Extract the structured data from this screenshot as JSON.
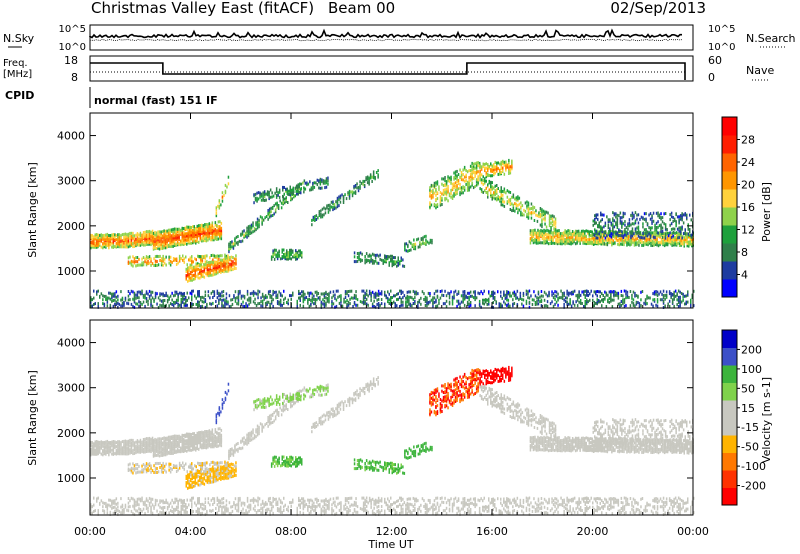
{
  "header": {
    "title": "Christmas Valley East (fitACF)",
    "beam": "Beam 00",
    "date": "02/Sep/2013"
  },
  "summary_panels": {
    "nsky_label": "N.Sky",
    "nsky_ticks": [
      "10^5",
      "10^0"
    ],
    "nsearch_label": "N.Search",
    "nsearch_ticks": [
      "10^5",
      "10^0"
    ],
    "freq_label_line1": "Freq.",
    "freq_label_line2": "[MHz]",
    "freq_ticks": [
      "18",
      "8"
    ],
    "nave_label": "Nave",
    "nave_ticks": [
      "60",
      "0"
    ],
    "cpid_label": "CPID",
    "cpid_text": "normal (fast) 151 IF"
  },
  "colors": {
    "power_scale": [
      "#0000ff",
      "#1e3ca0",
      "#2f7f4a",
      "#1ea03c",
      "#8fd24b",
      "#ffd23c",
      "#ff9600",
      "#ff6400",
      "#ff1e00",
      "#ff0000"
    ],
    "velocity_scale": [
      "#0000c8",
      "#3c50c8",
      "#3cb43c",
      "#7fd24b",
      "#c8c8c0",
      "#c8c8c0",
      "#ffb400",
      "#ff7800",
      "#ff3200",
      "#ff0000"
    ]
  },
  "chart_data": [
    {
      "type": "heatmap",
      "name": "power",
      "ylabel": "Slant Range [km]",
      "yticks": [
        "1000",
        "2000",
        "3000",
        "4000"
      ],
      "ylim": [
        180,
        4500
      ],
      "xlim": [
        0,
        24
      ],
      "colorbar_label": "Power [dB]",
      "colorbar_ticks": [
        "28",
        "24",
        "20",
        "16",
        "12",
        "8",
        "4"
      ],
      "colorbar_range": [
        0,
        32
      ]
    },
    {
      "type": "heatmap",
      "name": "velocity",
      "ylabel": "Slant Range [km]",
      "yticks": [
        "1000",
        "2000",
        "3000",
        "4000"
      ],
      "ylim": [
        180,
        4500
      ],
      "xlim": [
        0,
        24
      ],
      "xlabel": "Time UT",
      "xticks": [
        "00:00",
        "04:00",
        "08:00",
        "12:00",
        "16:00",
        "20:00",
        "00:00"
      ],
      "colorbar_label": "Velocity [m s-1]",
      "colorbar_ticks": [
        "200",
        "100",
        "50",
        "15",
        "-15",
        "-50",
        "-100",
        "-200"
      ]
    }
  ]
}
